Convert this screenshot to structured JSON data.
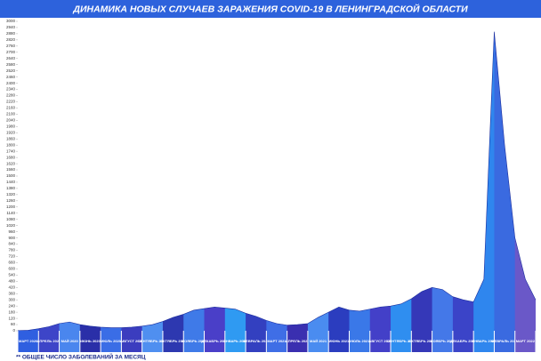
{
  "chart_data": {
    "type": "area",
    "title": "ДИНАМИКА НОВЫХ СЛУЧАЕВ ЗАРАЖЕНИЯ COVID-19 В ЛЕНИНГРАДСКОЙ ОБЛАСТИ",
    "footnote": "** ОБЩЕЕ ЧИСЛО ЗАБОЛЕВАНИЙ ЗА МЕСЯЦ",
    "title_color": "#2d62dc",
    "categories": [
      "МАРТ 2020",
      "АПРЕЛЬ 2020",
      "МАЙ 2020",
      "ИЮНЬ 2020",
      "ИЮЛЬ 2020",
      "АВГУСТ 2020",
      "СЕНТЯБРЬ 2020",
      "ОКТЯБРЬ 2020",
      "НОЯБРЬ 2020",
      "ДЕКАБРЬ 2020",
      "ЯНВАРЬ 2021",
      "ФЕВРАЛЬ 2021",
      "МАРТ 2021",
      "АПРЕЛЬ 2021",
      "МАЙ 2021",
      "ИЮНЬ 2021",
      "ИЮЛЬ 2021",
      "АВГУСТ 2021",
      "СЕНТЯБРЬ 2021",
      "ОКТЯБРЬ 2021",
      "НОЯБРЬ 2021",
      "ДЕКАБРЬ 2021",
      "ЯНВАРЬ 2022",
      "ФЕВРАЛЬ 2022",
      "МАРТ 2022"
    ],
    "category_colors": [
      "#2f5fe0",
      "#3d45c8",
      "#4a86ee",
      "#2a2fa8",
      "#3a6de6",
      "#3b3dbf",
      "#4f8ff0",
      "#2d38b0",
      "#3f7ae8",
      "#4a3fc8",
      "#2f9af2",
      "#3340c0",
      "#3f6ee6",
      "#3a2fb0",
      "#4a8cf0",
      "#2b3dbf",
      "#3a78e8",
      "#4340c8",
      "#2f8ef0",
      "#3538b8",
      "#4478e8",
      "#3b44c8",
      "#2f86ee",
      "#3a6ae0",
      "#6a58c8"
    ],
    "x": [
      0,
      0.5,
      1,
      1.5,
      2,
      2.5,
      3,
      3.5,
      4,
      4.5,
      5,
      5.5,
      6,
      6.5,
      7,
      7.5,
      8,
      8.5,
      9,
      9.5,
      10,
      10.5,
      11,
      11.5,
      12,
      12.5,
      13,
      13.5,
      14,
      14.5,
      15,
      15.5,
      16,
      16.5,
      17,
      17.5,
      18,
      18.5,
      19,
      19.5,
      20,
      20.5,
      21,
      21.5,
      22,
      22.5,
      23,
      23.5,
      24,
      24.5,
      25
    ],
    "values": [
      2,
      5,
      20,
      40,
      70,
      85,
      60,
      45,
      35,
      30,
      30,
      35,
      45,
      60,
      90,
      130,
      160,
      200,
      215,
      230,
      220,
      210,
      170,
      140,
      100,
      70,
      55,
      60,
      70,
      130,
      180,
      230,
      200,
      190,
      210,
      230,
      240,
      260,
      310,
      380,
      420,
      400,
      330,
      300,
      280,
      500,
      2900,
      1800,
      900,
      500,
      300
    ],
    "xlim": [
      0,
      25
    ],
    "ylim": [
      0,
      3000
    ],
    "yticks": [
      0,
      60,
      120,
      180,
      240,
      300,
      360,
      420,
      480,
      540,
      600,
      660,
      720,
      780,
      840,
      900,
      960,
      1020,
      1080,
      1140,
      1200,
      1260,
      1320,
      1380,
      1440,
      1500,
      1560,
      1620,
      1680,
      1740,
      1800,
      1860,
      1920,
      1980,
      2040,
      2100,
      2160,
      2220,
      2280,
      2340,
      2400,
      2460,
      2520,
      2580,
      2640,
      2700,
      2760,
      2820,
      2880,
      2940,
      3000
    ]
  }
}
